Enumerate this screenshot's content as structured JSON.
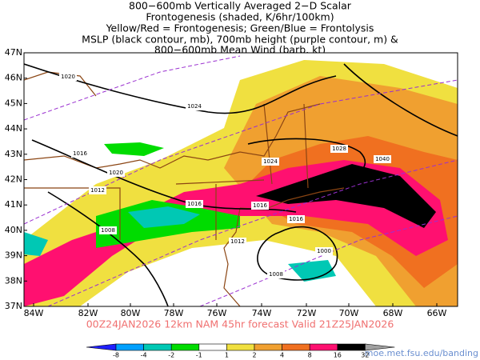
{
  "map": {
    "title_lines": [
      "800−600mb Vertically Averaged 2−D Scalar",
      "Frontogenesis (shaded, K/6hr/100km)",
      "Yellow/Red = Frontogenesis;  Green/Blue = Frontolysis",
      "MSLP (black contour, mb), 700mb height (purple contour, m) &",
      "800−600mb Mean Wind (barb, kt)"
    ],
    "lat_labels": [
      "37N",
      "38N",
      "39N",
      "40N",
      "41N",
      "42N",
      "43N",
      "44N",
      "45N",
      "46N",
      "47N"
    ],
    "lon_labels": [
      "84W",
      "82W",
      "80W",
      "78W",
      "76W",
      "74W",
      "72W",
      "70W",
      "68W",
      "66W"
    ],
    "valid_line": "00Z24JAN2026 12km NAM 45hr forecast Valid 21Z25JAN2026",
    "contour_labels": [
      1024,
      1016,
      1012,
      1008,
      1020,
      1028,
      1024,
      1016,
      1012,
      1016,
      1000,
      1008,
      1040,
      1020,
      1016
    ],
    "colorbar": {
      "ticks": [
        -8,
        -4,
        -2,
        -1,
        1,
        2,
        4,
        8,
        16,
        32
      ],
      "colors": [
        "#2020ff",
        "#00a0ff",
        "#00c8b4",
        "#00dc00",
        "#ffffff",
        "#f0e040",
        "#f0a030",
        "#f07020",
        "#ff1070",
        "#000000",
        "#a0a0a0"
      ]
    },
    "source": "moe.met.fsu.edu/banding"
  }
}
